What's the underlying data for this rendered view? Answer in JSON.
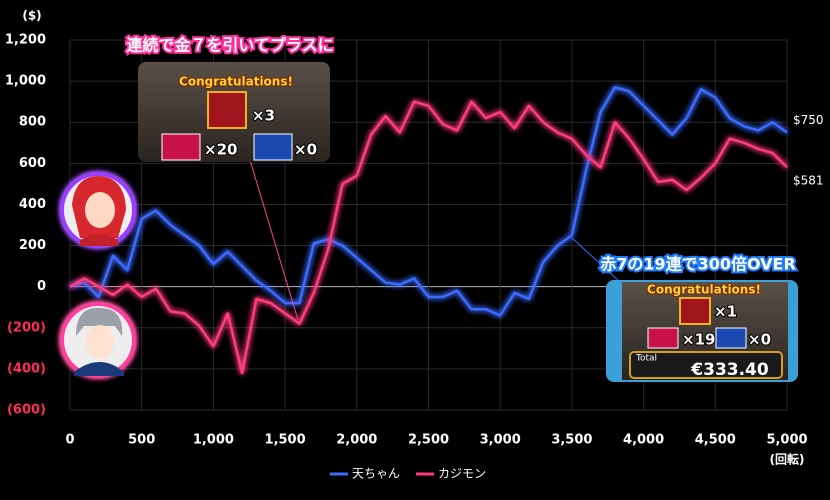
{
  "chart_data": {
    "type": "line",
    "x": [
      0,
      100,
      200,
      300,
      400,
      500,
      600,
      700,
      800,
      900,
      1000,
      1100,
      1200,
      1300,
      1400,
      1500,
      1600,
      1700,
      1800,
      1900,
      2000,
      2100,
      2200,
      2300,
      2400,
      2500,
      2600,
      2700,
      2800,
      2900,
      3000,
      3100,
      3200,
      3300,
      3400,
      3500,
      3600,
      3700,
      3800,
      3900,
      4000,
      4100,
      4200,
      4300,
      4400,
      4500,
      4600,
      4700,
      4800,
      4900,
      5000
    ],
    "series": [
      {
        "name": "天ちゃん",
        "color": "#3d6bff",
        "end_label": "$750",
        "values": [
          0,
          20,
          -50,
          150,
          80,
          330,
          370,
          300,
          250,
          200,
          110,
          170,
          100,
          30,
          -20,
          -80,
          -80,
          210,
          230,
          200,
          140,
          80,
          20,
          10,
          40,
          -50,
          -50,
          -20,
          -110,
          -110,
          -140,
          -30,
          -60,
          120,
          200,
          250,
          570,
          850,
          970,
          950,
          880,
          810,
          740,
          820,
          960,
          920,
          820,
          780,
          760,
          800,
          750
        ]
      },
      {
        "name": "カジモン",
        "color": "#ff3c7d",
        "end_label": "$581",
        "values": [
          0,
          40,
          0,
          -40,
          10,
          -50,
          -10,
          -120,
          -130,
          -190,
          -290,
          -130,
          -420,
          -60,
          -80,
          -130,
          -180,
          -30,
          180,
          500,
          540,
          740,
          830,
          750,
          900,
          880,
          790,
          760,
          900,
          820,
          850,
          770,
          880,
          800,
          750,
          720,
          640,
          580,
          800,
          720,
          620,
          510,
          520,
          470,
          530,
          600,
          720,
          700,
          670,
          650,
          581
        ]
      }
    ],
    "xlim": [
      0,
      5000
    ],
    "xticks": [
      0,
      500,
      {
        "value": 1000,
        "label": "1,000"
      },
      {
        "value": 1500,
        "label": "1,500"
      },
      {
        "value": 2000,
        "label": "2,000"
      },
      {
        "value": 2500,
        "label": "2,500"
      },
      {
        "value": 3000,
        "label": "3,000"
      },
      {
        "value": 3500,
        "label": "3,500"
      },
      {
        "value": 4000,
        "label": "4,000"
      },
      {
        "value": 4500,
        "label": "4,500"
      },
      {
        "value": 5000,
        "label": "5,000"
      }
    ],
    "ylim": [
      -600,
      1200
    ],
    "yticks": [
      {
        "value": -600,
        "label": "(600)"
      },
      {
        "value": -400,
        "label": "(400)"
      },
      {
        "value": -200,
        "label": "(200)"
      },
      0,
      200,
      400,
      600,
      800,
      {
        "value": 1000,
        "label": "1,000"
      },
      {
        "value": 1200,
        "label": "1,200"
      }
    ],
    "ylabel": "($)",
    "xlabel": "(回転)",
    "grid": true,
    "annotations": [
      {
        "text": "連続で金７を引いてプラスに",
        "inset": {
          "title": "Congratulations!",
          "items": [
            "×3",
            "×20",
            "×0"
          ]
        }
      },
      {
        "text": "赤7の19連で300倍OVER",
        "inset": {
          "title": "Congratulations!",
          "items": [
            "×1",
            "×19",
            "×0"
          ],
          "total_label": "Total",
          "total": "€333.40"
        }
      }
    ]
  }
}
